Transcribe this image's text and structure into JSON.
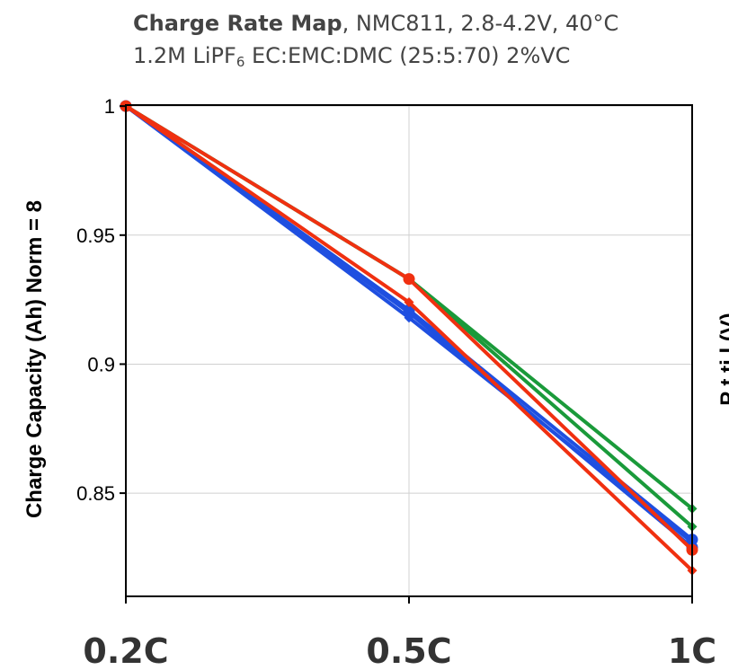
{
  "title": {
    "bold_part": "Charge Rate Map",
    "rest_line1": ", NMC811, 2.8-4.2V, 40°C",
    "line2_pre": "1.2M LiPF",
    "line2_sub": "6",
    "line2_post": " EC:EMC:DMC (25:5:70) 2%VC"
  },
  "colors": {
    "blue": "#1f4fe0",
    "red": "#f03010",
    "green": "#1a9a3a",
    "grid": "#d0d0d0",
    "axis": "#000000"
  },
  "chart_data": {
    "type": "line",
    "categories": [
      "0.2C",
      "0.5C",
      "1C"
    ],
    "ylabel": "Charge Capacity (Ah) Norm = 8",
    "right_ylabel_partial": "P   t  ti  l (V)",
    "ylim": [
      0.81,
      1.0
    ],
    "yticks": [
      1,
      0.95,
      0.9,
      0.85
    ],
    "ytick_labels": [
      "1",
      "0.95",
      "0.9",
      "0.85"
    ],
    "grid": true,
    "series": [
      {
        "color": "green",
        "marker": "diamond",
        "values": [
          1.0,
          0.933,
          0.844
        ]
      },
      {
        "color": "green",
        "marker": "diamond",
        "values": [
          1.0,
          0.933,
          0.837
        ]
      },
      {
        "color": "blue",
        "marker": "circle",
        "values": [
          1.0,
          0.921,
          0.832
        ]
      },
      {
        "color": "blue",
        "marker": "circle",
        "values": [
          1.0,
          0.92,
          0.829
        ]
      },
      {
        "color": "blue",
        "marker": "diamond",
        "values": [
          1.0,
          0.918,
          0.831
        ]
      },
      {
        "color": "red",
        "marker": "circle",
        "values": [
          1.0,
          0.933,
          0.828
        ]
      },
      {
        "color": "red",
        "marker": "diamond",
        "values": [
          1.0,
          0.924,
          0.82
        ]
      }
    ]
  }
}
